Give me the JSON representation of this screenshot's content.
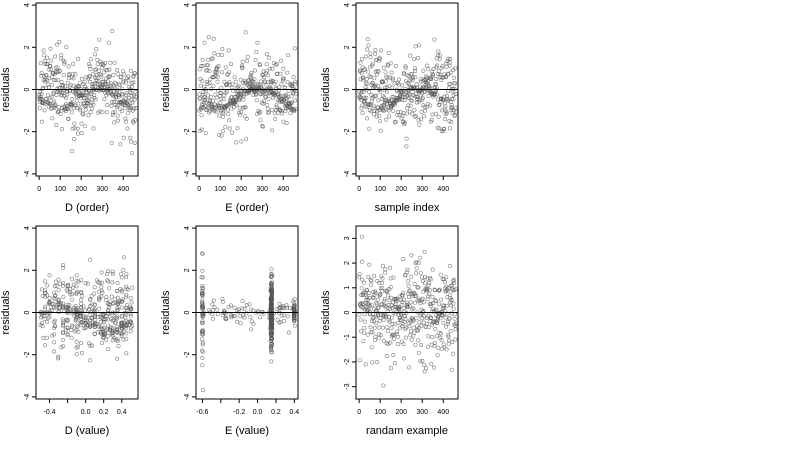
{
  "chart_data": [
    {
      "type": "scatter",
      "xlabel": "D (order)",
      "ylabel": "residuals",
      "xlim": [
        -15,
        470
      ],
      "ylim": [
        -4.1,
        4.1
      ],
      "xticks": [
        0,
        100,
        200,
        300,
        400
      ],
      "xtick_labels": [
        "0",
        "100",
        "200",
        "300",
        "400"
      ],
      "yticks": [
        -4,
        -2,
        0,
        2,
        4
      ],
      "ytick_labels": [
        "-4",
        "-2",
        "0",
        "2",
        "4"
      ],
      "hline": 0,
      "pattern": {
        "kind": "order",
        "n": 460,
        "xmax": 460,
        "spread": 0.9,
        "trend": 0.6,
        "seed": 11
      }
    },
    {
      "type": "scatter",
      "xlabel": "E (order)",
      "ylabel": "residuals",
      "xlim": [
        -15,
        470
      ],
      "ylim": [
        -4.1,
        4.1
      ],
      "xticks": [
        0,
        100,
        200,
        300,
        400
      ],
      "xtick_labels": [
        "0",
        "100",
        "200",
        "300",
        "400"
      ],
      "yticks": [
        -4,
        -2,
        0,
        2,
        4
      ],
      "ytick_labels": [
        "-4",
        "-2",
        "0",
        "2",
        "4"
      ],
      "hline": 0,
      "pattern": {
        "kind": "order",
        "n": 460,
        "xmax": 460,
        "spread": 0.9,
        "trend": 0.3,
        "seed": 23
      }
    },
    {
      "type": "scatter",
      "xlabel": "sample index",
      "ylabel": "residuals",
      "xlim": [
        -15,
        470
      ],
      "ylim": [
        -4.1,
        4.1
      ],
      "xticks": [
        0,
        100,
        200,
        300,
        400
      ],
      "xtick_labels": [
        "0",
        "100",
        "200",
        "300",
        "400"
      ],
      "yticks": [
        -4,
        -2,
        0,
        2,
        4
      ],
      "ytick_labels": [
        "-4",
        "-2",
        "0",
        "2",
        "4"
      ],
      "hline": 0,
      "pattern": {
        "kind": "order",
        "n": 460,
        "xmax": 460,
        "spread": 0.85,
        "trend": 0.2,
        "seed": 37
      }
    },
    {
      "type": "scatter",
      "xlabel": "D (value)",
      "ylabel": "residuals",
      "xlim": [
        -0.55,
        0.58
      ],
      "ylim": [
        -4.1,
        4.1
      ],
      "xticks": [
        -0.4,
        -0.2,
        0.0,
        0.2,
        0.4
      ],
      "xtick_labels": [
        "-0.4",
        "",
        "0.0",
        "0.2",
        "0.4"
      ],
      "yticks": [
        -4,
        -2,
        0,
        2,
        4
      ],
      "ytick_labels": [
        "-4",
        "-2",
        "0",
        "2",
        "4"
      ],
      "hline": 0,
      "pattern": {
        "kind": "dvalue",
        "n": 460,
        "xmin": -0.5,
        "xmax": 0.52,
        "spread": 0.9,
        "seed": 53
      }
    },
    {
      "type": "scatter",
      "xlabel": "E (value)",
      "ylabel": "residuals",
      "xlim": [
        -0.67,
        0.44
      ],
      "ylim": [
        -4.1,
        4.1
      ],
      "xticks": [
        -0.6,
        -0.4,
        -0.2,
        0.0,
        0.2,
        0.4
      ],
      "xtick_labels": [
        "-0.6",
        "",
        "-0.2",
        "0.0",
        "0.2",
        "0.4"
      ],
      "yticks": [
        -4,
        -2,
        0,
        2,
        4
      ],
      "ytick_labels": [
        "-4",
        "-2",
        "0",
        "2",
        "4"
      ],
      "hline": 0,
      "pattern": {
        "kind": "evalue",
        "n": 460,
        "seed": 71,
        "clusters": [
          {
            "x": -0.6,
            "share": 0.12,
            "spread": 1.2
          },
          {
            "x": 0.15,
            "share": 0.62,
            "spread": 0.75
          },
          {
            "x": 0.4,
            "share": 0.08,
            "spread": 0.3
          }
        ]
      }
    },
    {
      "type": "scatter",
      "xlabel": "randam example",
      "ylabel": "residuals",
      "xlim": [
        -15,
        470
      ],
      "ylim": [
        -3.5,
        3.5
      ],
      "xticks": [
        0,
        100,
        200,
        300,
        400
      ],
      "xtick_labels": [
        "0",
        "100",
        "200",
        "300",
        "400"
      ],
      "yticks": [
        -3,
        -2,
        -1,
        0,
        1,
        2,
        3
      ],
      "ytick_labels": [
        "-3",
        "-2",
        "-1",
        "0",
        "1",
        "2",
        "3"
      ],
      "hline": 0,
      "pattern": {
        "kind": "random",
        "n": 460,
        "xmax": 460,
        "spread": 1.0,
        "seed": 97
      }
    }
  ]
}
